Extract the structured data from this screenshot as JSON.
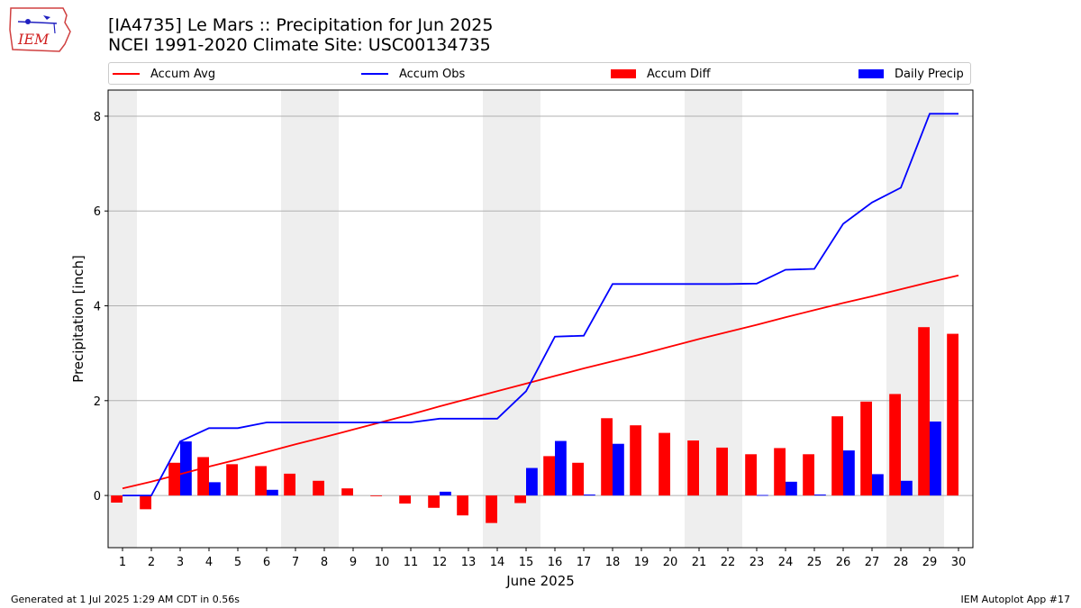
{
  "header": {
    "title_line1": "[IA4735] Le Mars :: Precipitation for Jun 2025",
    "title_line2": "NCEI 1991-2020 Climate Site: USC00134735",
    "logo_text": "IEM"
  },
  "footer": {
    "generated": "Generated at 1 Jul 2025 1:29 AM CDT in 0.56s",
    "app": "IEM Autoplot App #17"
  },
  "colors": {
    "avg": "#ff0000",
    "obs": "#0000ff",
    "diff": "#ff0000",
    "daily": "#0000ff",
    "weekend_band": "#eeeeee",
    "grid": "#b0b0b0"
  },
  "chart_data": {
    "type": "bar",
    "xlabel": "June 2025",
    "ylabel": "Precipitation [inch]",
    "ylim": [
      -1.1,
      8.55
    ],
    "yticks": [
      0,
      2,
      4,
      6,
      8
    ],
    "x": [
      1,
      2,
      3,
      4,
      5,
      6,
      7,
      8,
      9,
      10,
      11,
      12,
      13,
      14,
      15,
      16,
      17,
      18,
      19,
      20,
      21,
      22,
      23,
      24,
      25,
      26,
      27,
      28,
      29,
      30
    ],
    "xticks": [
      "1",
      "2",
      "3",
      "4",
      "5",
      "6",
      "7",
      "8",
      "9",
      "10",
      "11",
      "12",
      "13",
      "14",
      "15",
      "16",
      "17",
      "18",
      "19",
      "20",
      "21",
      "22",
      "23",
      "24",
      "25",
      "26",
      "27",
      "28",
      "29",
      "30"
    ],
    "weekend_bands": [
      [
        0.5,
        1.5
      ],
      [
        6.5,
        8.5
      ],
      [
        13.5,
        15.5
      ],
      [
        20.5,
        22.5
      ],
      [
        27.5,
        29.5
      ]
    ],
    "grid": "y",
    "legend_position": "top",
    "series": [
      {
        "name": "Accum Avg",
        "kind": "line",
        "values": [
          0.15,
          0.29,
          0.45,
          0.61,
          0.76,
          0.92,
          1.08,
          1.23,
          1.39,
          1.55,
          1.71,
          1.88,
          2.04,
          2.2,
          2.36,
          2.52,
          2.68,
          2.83,
          2.98,
          3.14,
          3.3,
          3.45,
          3.6,
          3.76,
          3.91,
          4.06,
          4.2,
          4.35,
          4.5,
          4.64
        ]
      },
      {
        "name": "Accum Obs",
        "kind": "line",
        "values": [
          0.0,
          0.0,
          1.14,
          1.42,
          1.42,
          1.54,
          1.54,
          1.54,
          1.54,
          1.54,
          1.54,
          1.62,
          1.62,
          1.62,
          2.2,
          3.35,
          3.37,
          4.46,
          4.46,
          4.46,
          4.46,
          4.46,
          4.47,
          4.76,
          4.78,
          5.73,
          6.18,
          6.49,
          8.05,
          8.05
        ]
      },
      {
        "name": "Accum Diff",
        "kind": "bar",
        "values": [
          -0.15,
          -0.29,
          0.69,
          0.81,
          0.66,
          0.62,
          0.46,
          0.31,
          0.15,
          -0.01,
          -0.17,
          -0.26,
          -0.42,
          -0.58,
          -0.16,
          0.83,
          0.69,
          1.63,
          1.48,
          1.32,
          1.16,
          1.01,
          0.87,
          1.0,
          0.87,
          1.67,
          1.98,
          2.14,
          3.55,
          3.41
        ]
      },
      {
        "name": "Daily Precip",
        "kind": "bar",
        "values": [
          0.0,
          0.0,
          1.14,
          0.28,
          0.0,
          0.12,
          0.0,
          0.0,
          0.0,
          0.0,
          0.0,
          0.08,
          0.0,
          0.0,
          0.58,
          1.15,
          0.02,
          1.09,
          0.0,
          0.0,
          0.0,
          0.0,
          0.01,
          0.29,
          0.02,
          0.95,
          0.45,
          0.31,
          1.56,
          0.0
        ]
      }
    ]
  }
}
